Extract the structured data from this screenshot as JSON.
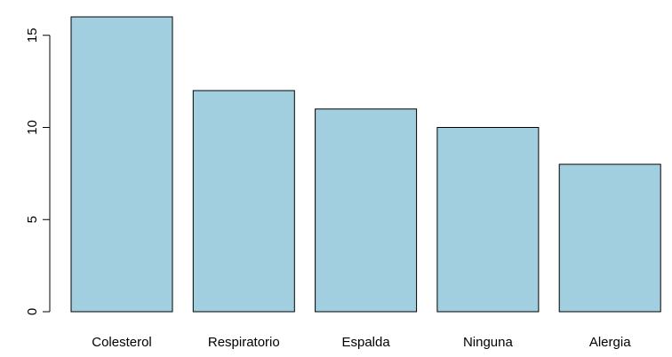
{
  "chart_data": {
    "type": "bar",
    "categories": [
      "Colesterol",
      "Respiratorio",
      "Espalda",
      "Ninguna",
      "Alergia"
    ],
    "values": [
      16,
      12,
      11,
      10,
      8
    ],
    "title": "",
    "xlabel": "",
    "ylabel": "",
    "ylim": [
      0,
      16
    ],
    "yticks": [
      0,
      5,
      10,
      15
    ],
    "bar_color": "#a1cfe0",
    "border_color": "#000000",
    "grid": false
  }
}
